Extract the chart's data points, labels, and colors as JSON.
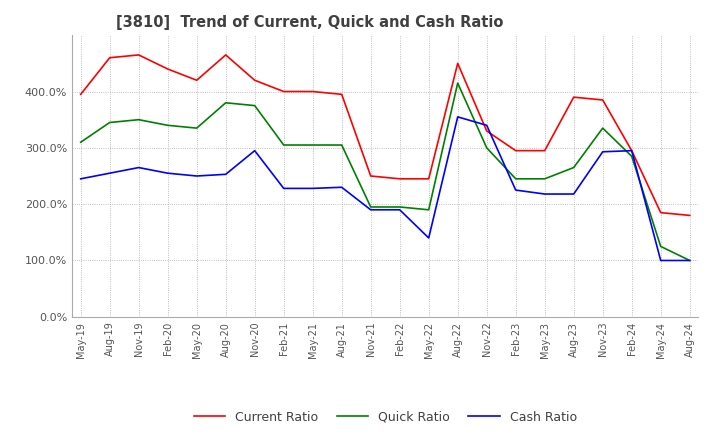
{
  "title": "[3810]  Trend of Current, Quick and Cash Ratio",
  "x_labels": [
    "May-19",
    "Aug-19",
    "Nov-19",
    "Feb-20",
    "May-20",
    "Aug-20",
    "Nov-20",
    "Feb-21",
    "May-21",
    "Aug-21",
    "Nov-21",
    "Feb-22",
    "May-22",
    "Aug-22",
    "Nov-22",
    "Feb-23",
    "May-23",
    "Aug-23",
    "Nov-23",
    "Feb-24",
    "May-24",
    "Aug-24"
  ],
  "current_ratio": [
    395,
    460,
    465,
    440,
    420,
    465,
    420,
    400,
    400,
    395,
    250,
    245,
    245,
    450,
    330,
    295,
    295,
    390,
    385,
    295,
    185,
    180
  ],
  "quick_ratio": [
    310,
    345,
    350,
    340,
    335,
    380,
    375,
    305,
    305,
    305,
    195,
    195,
    190,
    415,
    300,
    245,
    245,
    265,
    335,
    285,
    125,
    100
  ],
  "cash_ratio": [
    245,
    255,
    265,
    255,
    250,
    253,
    295,
    228,
    228,
    230,
    190,
    190,
    140,
    355,
    340,
    225,
    218,
    218,
    293,
    295,
    100,
    100
  ],
  "current_color": "#FF0000",
  "quick_color": "#008000",
  "cash_color": "#0000FF",
  "ylim": [
    0,
    500
  ],
  "yticks": [
    0,
    100,
    200,
    300,
    400
  ],
  "background_color": "#FFFFFF",
  "grid_color": "#AAAAAA"
}
